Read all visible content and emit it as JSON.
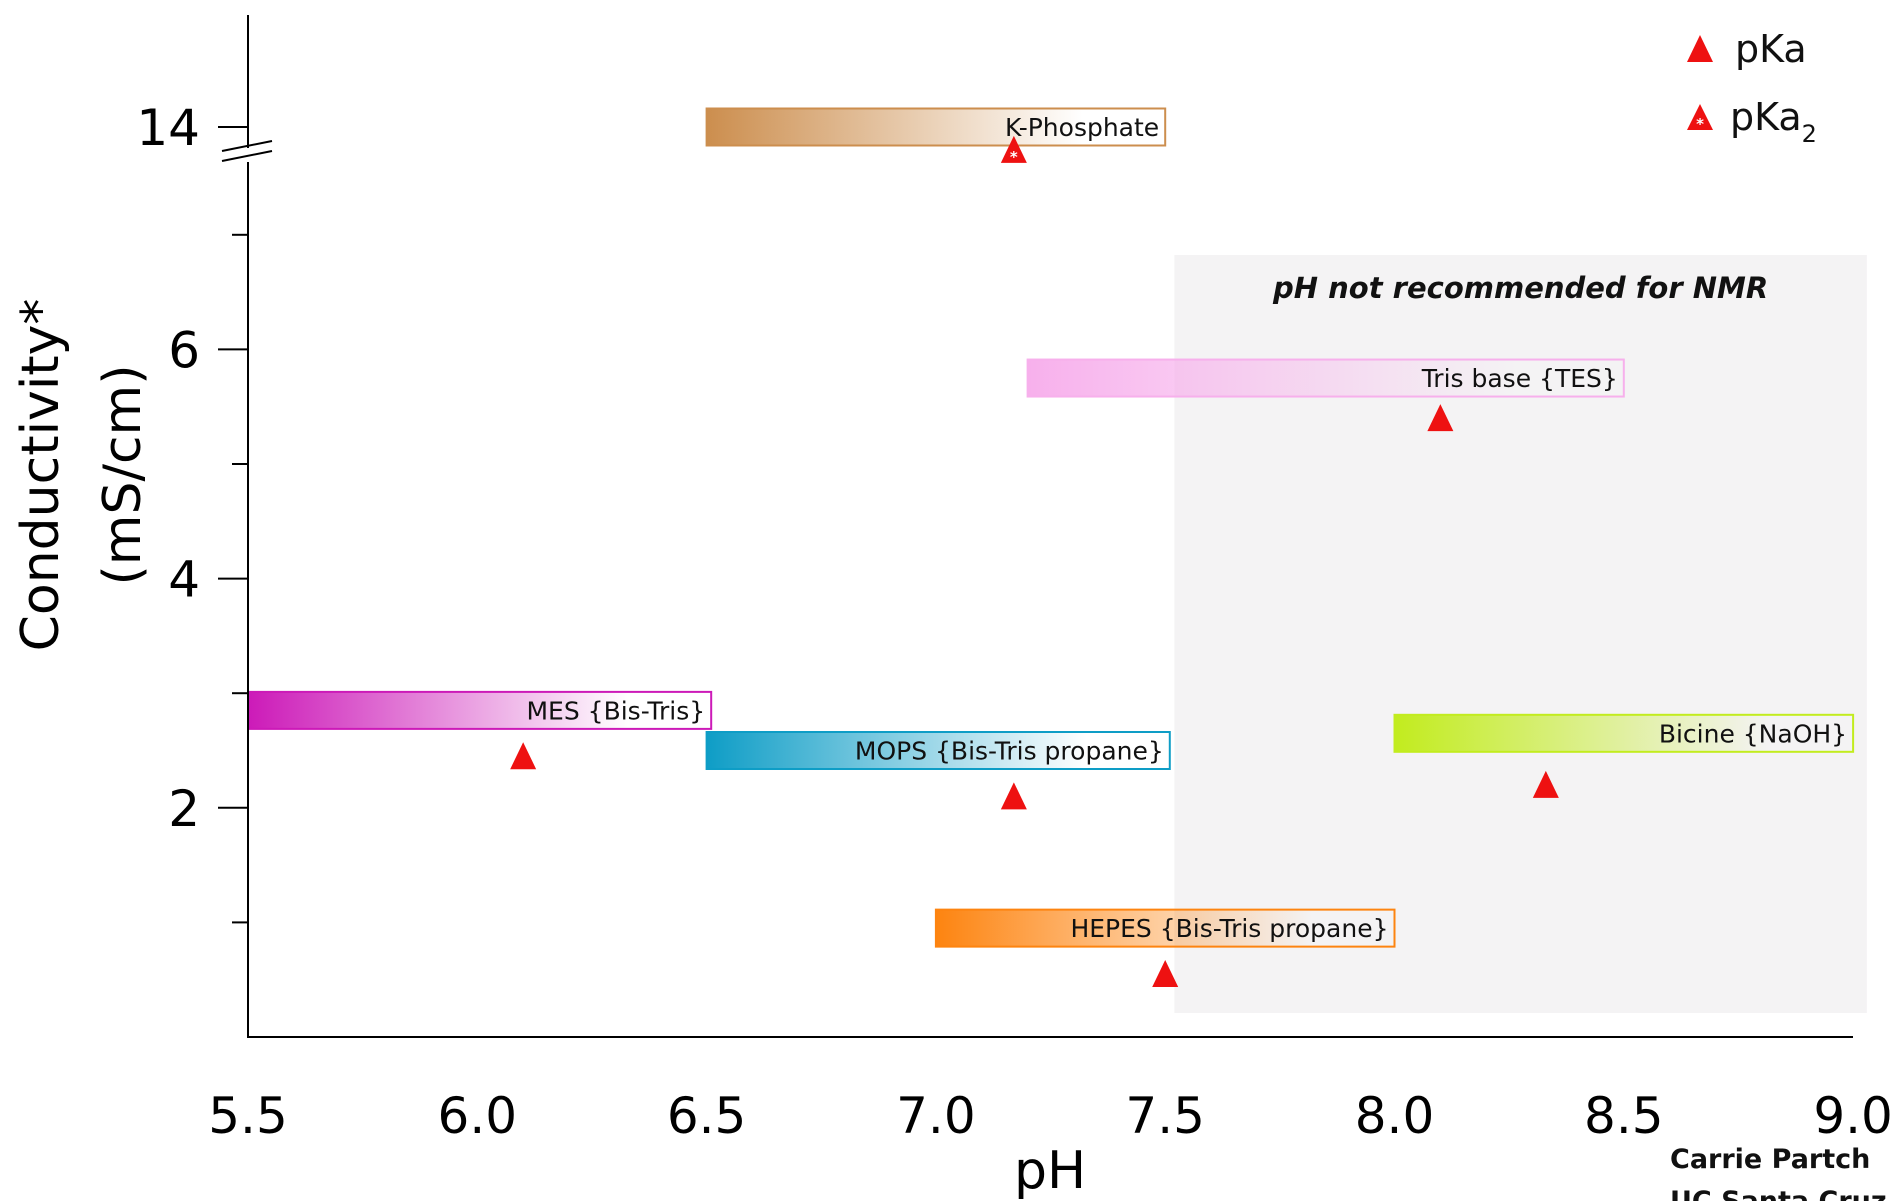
{
  "chart_data": {
    "type": "range-bar",
    "xlabel": "pH",
    "ylabel_line1": "Conductivity*",
    "ylabel_line2": "(mS/cm)",
    "xlim": [
      5.5,
      9.0
    ],
    "x_ticks": [
      "5.5",
      "6.0",
      "6.5",
      "7.0",
      "7.5",
      "8.0",
      "8.5",
      "9.0"
    ],
    "y_ticks": [
      {
        "value": 2,
        "label": "2"
      },
      {
        "value": 4,
        "label": "4"
      },
      {
        "value": 6,
        "label": "6"
      },
      {
        "value": 14,
        "label": "14"
      }
    ],
    "y_minor_ticks": [
      1,
      3,
      5,
      7
    ],
    "y_axis_break": "between 7.5 and 14",
    "shaded_region": {
      "x_start": 7.52,
      "x_end": 9.03,
      "label": "pH not recommended for NMR",
      "color": "#f4f3f4"
    },
    "buffers": [
      {
        "name": "K-Phosphate",
        "x_start": 6.5,
        "x_end": 7.5,
        "y": 14.0,
        "color": "#cc8e4e",
        "pka": 7.17,
        "pka_y": 13.8,
        "pka_type": "pKa2"
      },
      {
        "name": "Tris base {TES}",
        "x_start": 7.2,
        "x_end": 8.5,
        "y": 5.75,
        "color": "#f7b0ec",
        "pka": 8.1,
        "pka_y": 5.4,
        "pka_type": "pKa"
      },
      {
        "name": "MES {Bis-Tris}",
        "x_start": 5.5,
        "x_end": 6.51,
        "y": 2.85,
        "color": "#cc1ab8",
        "pka": 6.1,
        "pka_y": 2.45,
        "pka_type": "pKa"
      },
      {
        "name": "MOPS {Bis-Tris propane}",
        "x_start": 6.5,
        "x_end": 7.51,
        "y": 2.5,
        "color": "#0e9dc6",
        "pka": 7.17,
        "pka_y": 2.1,
        "pka_type": "pKa"
      },
      {
        "name": "Bicine {NaOH}",
        "x_start": 8.0,
        "x_end": 9.0,
        "y": 2.65,
        "color": "#c2ec1e",
        "pka": 8.33,
        "pka_y": 2.2,
        "pka_type": "pKa"
      },
      {
        "name": "HEPES {Bis-Tris propane}",
        "x_start": 7.0,
        "x_end": 8.0,
        "y": 0.95,
        "color": "#fd8410",
        "pka": 7.5,
        "pka_y": 0.55,
        "pka_type": "pKa"
      }
    ],
    "legend": {
      "placement": "top-right",
      "pka_label": "pKa",
      "pka2_label": "pKa",
      "pka2_subscript": "2"
    },
    "marker_color": "#ee1111"
  },
  "credit_line1": "Carrie Partch",
  "credit_line2": "UC Santa Cruz"
}
